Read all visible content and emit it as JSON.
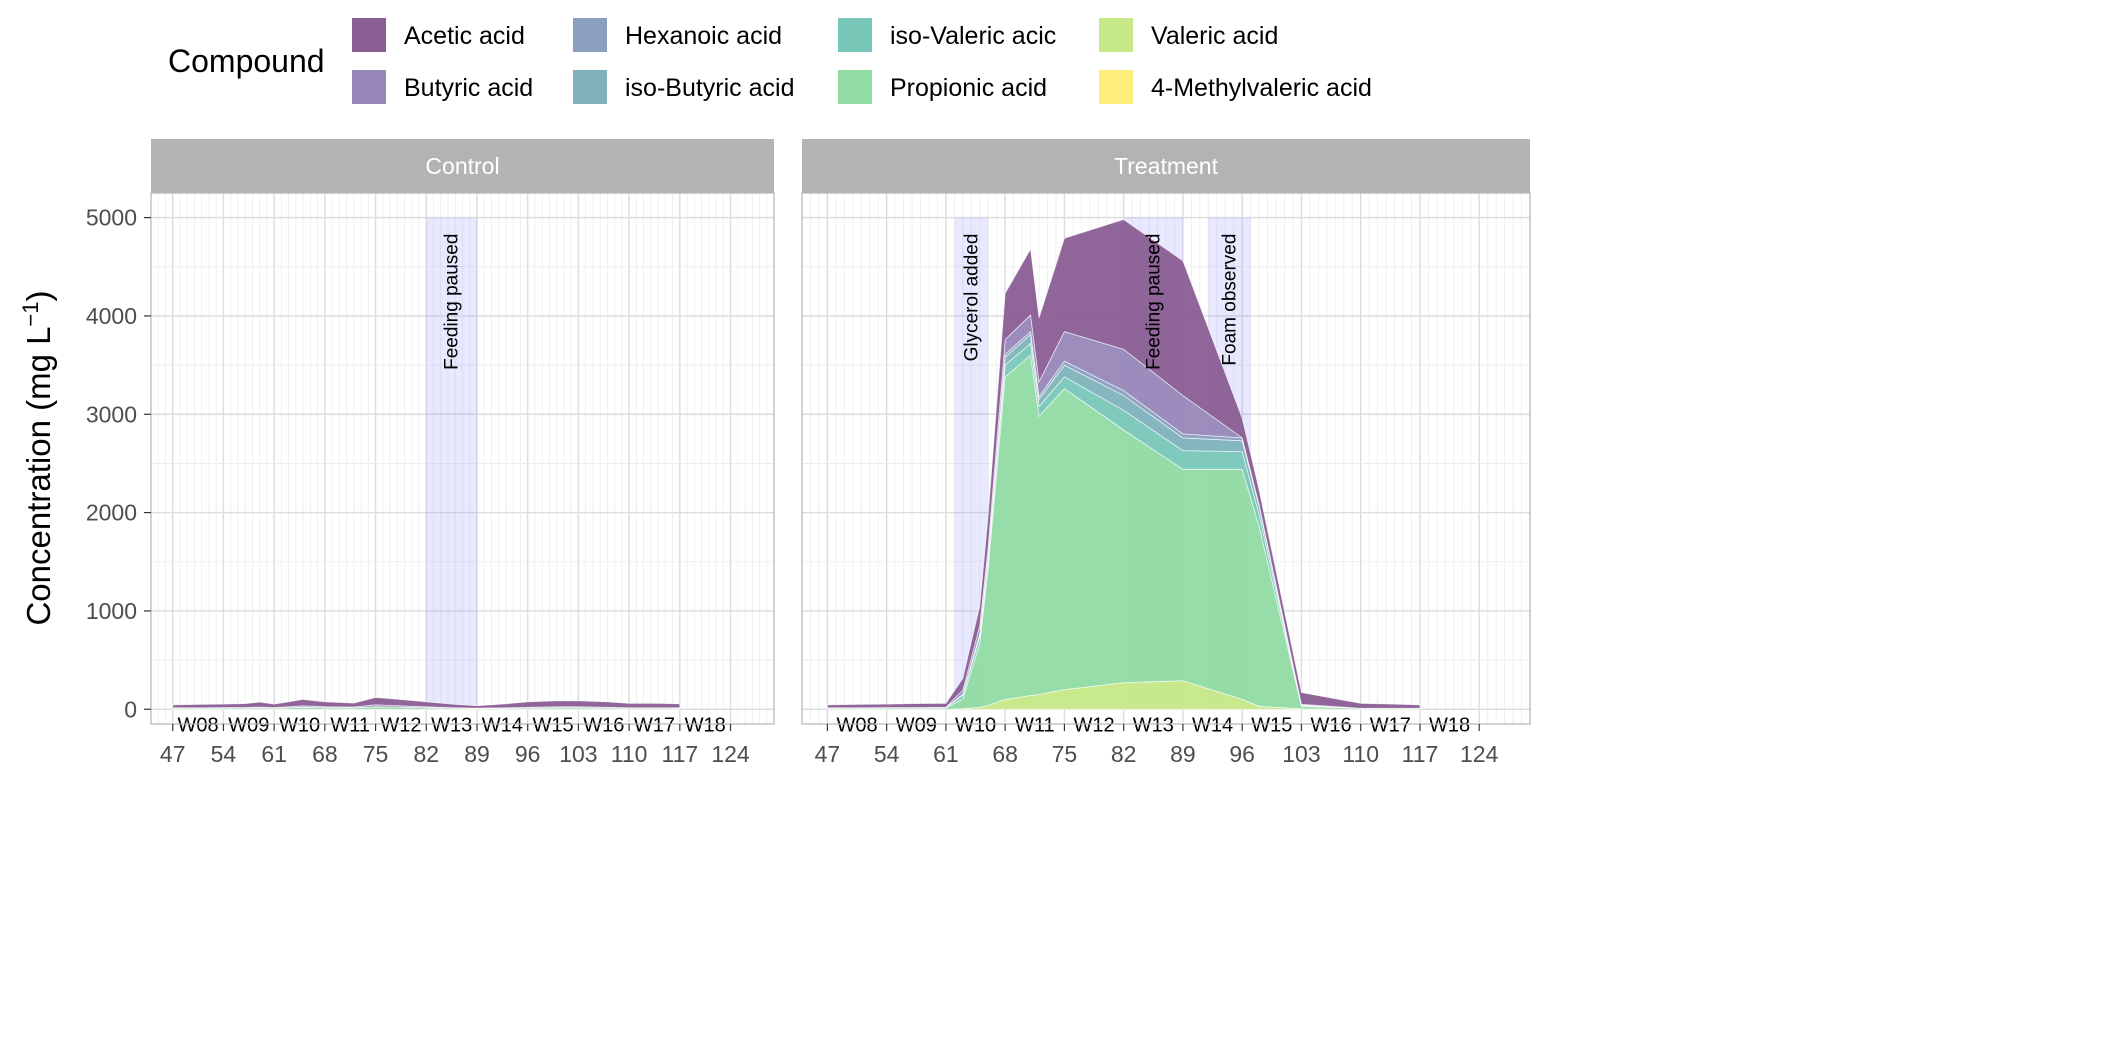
{
  "chart_data": {
    "type": "area",
    "stacked": true,
    "ylabel_main": "Concentration (mg L",
    "ylabel_sup": "−1",
    "ylabel_close": ")",
    "xlabel": "",
    "ylim": [
      -150,
      5250
    ],
    "y_ticks": [
      0,
      1000,
      2000,
      3000,
      4000,
      5000
    ],
    "x_ticks": [
      47,
      54,
      61,
      68,
      75,
      82,
      89,
      96,
      103,
      110,
      117,
      124
    ],
    "legend": {
      "title": "Compound",
      "placement": "top",
      "entries": [
        "Acetic acid",
        "Butyric acid",
        "Hexanoic acid",
        "iso-Butyric acid",
        "iso-Valeric acic",
        "Propionic acid",
        "Valeric acid",
        "4-Methylvaleric acid"
      ]
    },
    "colors": {
      "Acetic acid": "#8a5d94",
      "Butyric acid": "#9787b9",
      "Hexanoic acid": "#8b9fc0",
      "iso-Butyric acid": "#7fb2bb",
      "iso-Valeric acic": "#79c7b9",
      "Propionic acid": "#91dba4",
      "Valeric acid": "#c6e887",
      "4-Methylvaleric acid": "#fdee7b"
    },
    "stack_order": [
      "4-Methylvaleric acid",
      "Valeric acid",
      "Propionic acid",
      "iso-Valeric acic",
      "iso-Butyric acid",
      "Hexanoic acid",
      "Butyric acid",
      "Acetic acid"
    ],
    "panels": [
      {
        "name": "Control",
        "xlim": [
          44,
          130
        ],
        "x": [
          47,
          51,
          54,
          57,
          59,
          61,
          63,
          65,
          68,
          72,
          75,
          78,
          82,
          86,
          89,
          93,
          96,
          100,
          103,
          107,
          110,
          114,
          117
        ],
        "series": [
          {
            "name": "4-Methylvaleric acid",
            "values": [
              0,
              0,
              0,
              0,
              0,
              0,
              0,
              0,
              0,
              0,
              0,
              0,
              0,
              0,
              0,
              0,
              0,
              0,
              0,
              0,
              0,
              0,
              0
            ]
          },
          {
            "name": "Valeric acid",
            "values": [
              0,
              0,
              0,
              0,
              0,
              0,
              0,
              0,
              0,
              0,
              0,
              0,
              0,
              0,
              0,
              0,
              0,
              0,
              0,
              0,
              0,
              0,
              0
            ]
          },
          {
            "name": "Propionic acid",
            "values": [
              10,
              10,
              12,
              12,
              15,
              12,
              15,
              20,
              15,
              15,
              25,
              22,
              15,
              10,
              8,
              10,
              12,
              15,
              15,
              12,
              10,
              10,
              10
            ]
          },
          {
            "name": "iso-Valeric acic",
            "values": [
              0,
              0,
              0,
              0,
              0,
              0,
              0,
              0,
              0,
              0,
              0,
              0,
              0,
              0,
              0,
              0,
              0,
              0,
              0,
              0,
              0,
              0,
              0
            ]
          },
          {
            "name": "iso-Butyric acid",
            "values": [
              0,
              0,
              0,
              0,
              0,
              0,
              0,
              0,
              0,
              0,
              0,
              0,
              0,
              0,
              0,
              0,
              0,
              0,
              0,
              0,
              0,
              0,
              0
            ]
          },
          {
            "name": "Hexanoic acid",
            "values": [
              0,
              0,
              0,
              0,
              0,
              0,
              0,
              0,
              0,
              0,
              0,
              0,
              0,
              0,
              0,
              0,
              0,
              0,
              0,
              0,
              0,
              0,
              0
            ]
          },
          {
            "name": "Butyric acid",
            "values": [
              5,
              5,
              5,
              5,
              8,
              5,
              10,
              15,
              10,
              8,
              20,
              15,
              10,
              5,
              3,
              5,
              8,
              10,
              10,
              8,
              5,
              5,
              5
            ]
          },
          {
            "name": "Acetic acid",
            "values": [
              30,
              35,
              35,
              40,
              50,
              35,
              50,
              65,
              50,
              40,
              75,
              65,
              50,
              35,
              25,
              40,
              55,
              60,
              60,
              55,
              45,
              45,
              40
            ]
          }
        ],
        "annotations": [
          {
            "label": "Feeding paused",
            "x_start": 82,
            "x_end": 89
          }
        ],
        "weeks": [
          {
            "label": "W08",
            "x_start": 47,
            "x_end": 54
          },
          {
            "label": "W09",
            "x_start": 54,
            "x_end": 61
          },
          {
            "label": "W10",
            "x_start": 61,
            "x_end": 68
          },
          {
            "label": "W11",
            "x_start": 68,
            "x_end": 75
          },
          {
            "label": "W12",
            "x_start": 75,
            "x_end": 82
          },
          {
            "label": "W13",
            "x_start": 82,
            "x_end": 89
          },
          {
            "label": "W14",
            "x_start": 89,
            "x_end": 96
          },
          {
            "label": "W15",
            "x_start": 96,
            "x_end": 103
          },
          {
            "label": "W16",
            "x_start": 103,
            "x_end": 110
          },
          {
            "label": "W17",
            "x_start": 110,
            "x_end": 117
          },
          {
            "label": "W18",
            "x_start": 117,
            "x_end": 124
          }
        ]
      },
      {
        "name": "Treatment",
        "xlim": [
          44,
          130
        ],
        "x": [
          47,
          51,
          54,
          57,
          61,
          63,
          65,
          66,
          68,
          71,
          72,
          75,
          82,
          89,
          96,
          98,
          103,
          110,
          117
        ],
        "series": [
          {
            "name": "4-Methylvaleric acid",
            "values": [
              0,
              0,
              0,
              0,
              0,
              0,
              0,
              0,
              0,
              0,
              0,
              0,
              0,
              0,
              0,
              0,
              0,
              0,
              0
            ]
          },
          {
            "name": "Valeric acid",
            "values": [
              0,
              0,
              0,
              0,
              0,
              5,
              20,
              40,
              100,
              140,
              150,
              200,
              270,
              290,
              100,
              30,
              5,
              0,
              0
            ]
          },
          {
            "name": "Propionic acid",
            "values": [
              10,
              10,
              12,
              12,
              15,
              100,
              650,
              1400,
              3280,
              3460,
              2830,
              3060,
              2570,
              2150,
              2340,
              1830,
              25,
              10,
              10
            ]
          },
          {
            "name": "iso-Valeric acic",
            "values": [
              0,
              0,
              0,
              0,
              0,
              40,
              70,
              80,
              120,
              120,
              100,
              120,
              200,
              190,
              180,
              120,
              5,
              0,
              0
            ]
          },
          {
            "name": "iso-Butyric acid",
            "values": [
              0,
              0,
              0,
              0,
              0,
              5,
              20,
              30,
              80,
              90,
              70,
              120,
              150,
              130,
              110,
              80,
              5,
              0,
              0
            ]
          },
          {
            "name": "Hexanoic acid",
            "values": [
              0,
              0,
              0,
              0,
              0,
              5,
              10,
              20,
              30,
              30,
              30,
              40,
              50,
              40,
              30,
              20,
              0,
              0,
              0
            ]
          },
          {
            "name": "Butyric acid",
            "values": [
              5,
              5,
              5,
              5,
              5,
              40,
              80,
              90,
              150,
              170,
              150,
              300,
              420,
              390,
              0,
              0,
              10,
              0,
              0
            ]
          },
          {
            "name": "Acetic acid",
            "values": [
              30,
              35,
              35,
              40,
              40,
              120,
              200,
              320,
              470,
              670,
              650,
              950,
              1320,
              1370,
              200,
              150,
              120,
              50,
              35
            ]
          }
        ],
        "annotations": [
          {
            "label": "Glycerol added",
            "x_start": 62,
            "x_end": 66
          },
          {
            "label": "Feeding paused",
            "x_start": 82,
            "x_end": 89
          },
          {
            "label": "Foam observed",
            "x_start": 92,
            "x_end": 97
          }
        ],
        "weeks": [
          {
            "label": "W08",
            "x_start": 47,
            "x_end": 54
          },
          {
            "label": "W09",
            "x_start": 54,
            "x_end": 61
          },
          {
            "label": "W10",
            "x_start": 61,
            "x_end": 68
          },
          {
            "label": "W11",
            "x_start": 68,
            "x_end": 75
          },
          {
            "label": "W12",
            "x_start": 75,
            "x_end": 82
          },
          {
            "label": "W13",
            "x_start": 82,
            "x_end": 89
          },
          {
            "label": "W14",
            "x_start": 89,
            "x_end": 96
          },
          {
            "label": "W15",
            "x_start": 96,
            "x_end": 103
          },
          {
            "label": "W16",
            "x_start": 103,
            "x_end": 110
          },
          {
            "label": "W17",
            "x_start": 110,
            "x_end": 117
          },
          {
            "label": "W18",
            "x_start": 117,
            "x_end": 124
          }
        ]
      }
    ]
  }
}
